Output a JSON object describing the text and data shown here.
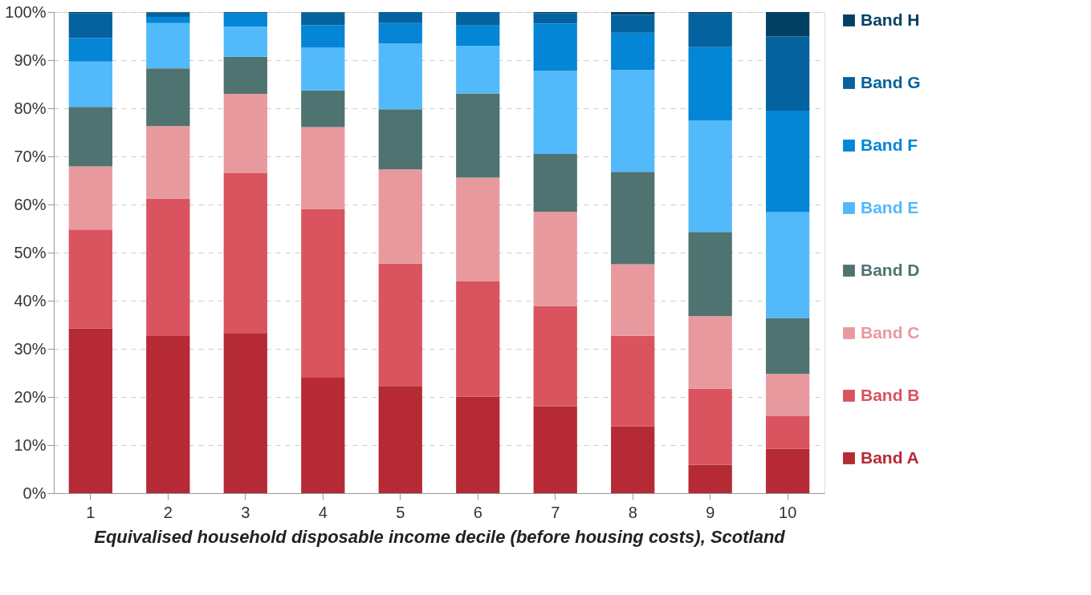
{
  "chart_data": {
    "type": "bar",
    "stacked": true,
    "xlabel": "Equivalised household disposable income decile (before housing costs), Scotland",
    "categories": [
      "1",
      "2",
      "3",
      "4",
      "5",
      "6",
      "7",
      "8",
      "9",
      "10"
    ],
    "series": [
      {
        "name": "Band A",
        "color": "#b52a34",
        "values": [
          34.2,
          32.8,
          33.3,
          24.0,
          22.3,
          20.1,
          18.1,
          13.9,
          5.9,
          9.2
        ]
      },
      {
        "name": "Band B",
        "color": "#d9545e",
        "values": [
          20.6,
          28.4,
          33.2,
          35.1,
          25.4,
          23.9,
          20.8,
          18.8,
          15.8,
          6.8
        ]
      },
      {
        "name": "Band C",
        "color": "#e8999e",
        "values": [
          13.1,
          15.1,
          16.5,
          17.0,
          19.6,
          21.6,
          19.6,
          14.9,
          15.1,
          8.8
        ]
      },
      {
        "name": "Band D",
        "color": "#4e7370",
        "values": [
          12.4,
          12.0,
          7.7,
          7.6,
          12.5,
          17.5,
          12.0,
          19.2,
          17.5,
          11.6
        ]
      },
      {
        "name": "Band E",
        "color": "#52b9fb",
        "values": [
          9.4,
          9.4,
          6.3,
          8.9,
          13.7,
          9.9,
          17.3,
          21.2,
          23.1,
          22.0
        ]
      },
      {
        "name": "Band F",
        "color": "#0485d5",
        "values": [
          4.9,
          1.3,
          2.7,
          4.7,
          4.2,
          4.2,
          9.8,
          7.7,
          15.3,
          21.1
        ]
      },
      {
        "name": "Band G",
        "color": "#04629e",
        "values": [
          5.2,
          0.9,
          0.3,
          2.6,
          2.3,
          2.8,
          2.2,
          3.7,
          7.0,
          15.4
        ]
      },
      {
        "name": "Band H",
        "color": "#043f64",
        "values": [
          0.2,
          0.1,
          0.0,
          0.1,
          0.0,
          0.0,
          0.2,
          0.6,
          0.3,
          5.1
        ]
      }
    ],
    "ylim": [
      0,
      100
    ],
    "yticks": [
      {
        "value": 0,
        "label": "0%"
      },
      {
        "value": 10,
        "label": "10%"
      },
      {
        "value": 20,
        "label": "20%"
      },
      {
        "value": 30,
        "label": "30%"
      },
      {
        "value": 40,
        "label": "40%"
      },
      {
        "value": 50,
        "label": "50%"
      },
      {
        "value": 60,
        "label": "60%"
      },
      {
        "value": 70,
        "label": "70%"
      },
      {
        "value": 80,
        "label": "80%"
      },
      {
        "value": 90,
        "label": "90%"
      },
      {
        "value": 100,
        "label": "100%"
      }
    ],
    "grid": "y",
    "legend": "right"
  }
}
